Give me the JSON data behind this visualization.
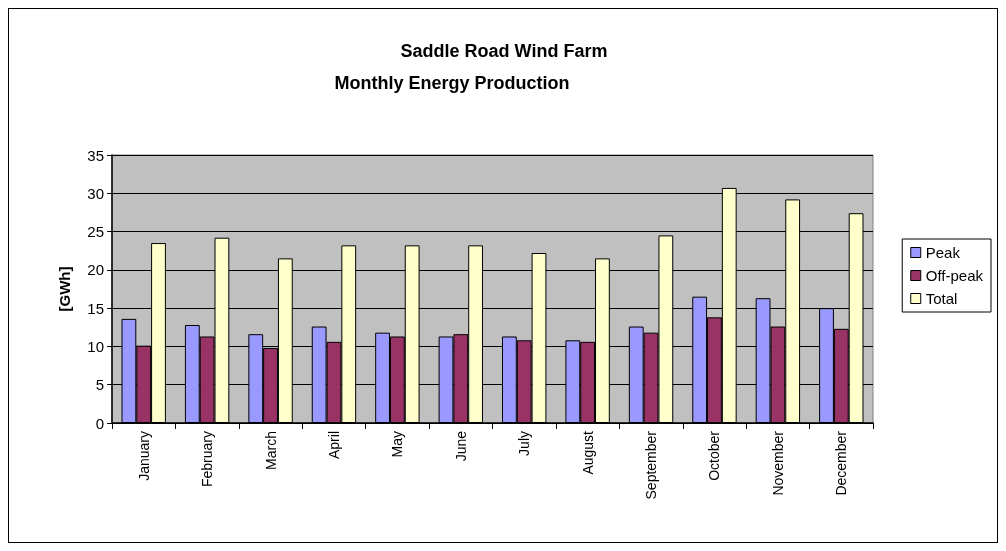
{
  "chart_data": {
    "type": "bar",
    "title": "Saddle Road Wind Farm",
    "subtitle": "Monthly Energy Production",
    "ylabel": "[GWh]",
    "categories": [
      "January",
      "February",
      "March",
      "April",
      "May",
      "June",
      "July",
      "August",
      "September",
      "October",
      "November",
      "December"
    ],
    "series": [
      {
        "name": "Peak",
        "color": "#9999ff",
        "values": [
          13.6,
          12.8,
          11.6,
          12.6,
          11.8,
          11.3,
          11.3,
          10.8,
          12.6,
          16.5,
          16.3,
          15.0
        ]
      },
      {
        "name": "Off-peak",
        "color": "#993366",
        "values": [
          10.1,
          11.3,
          9.8,
          10.6,
          11.3,
          11.6,
          10.8,
          10.6,
          11.8,
          13.8,
          12.6,
          12.3
        ]
      },
      {
        "name": "Total",
        "color": "#ffffcc",
        "values": [
          23.5,
          24.2,
          21.5,
          23.2,
          23.2,
          23.2,
          22.2,
          21.5,
          24.5,
          30.7,
          29.2,
          27.4
        ]
      }
    ],
    "ylim": [
      0,
      35
    ],
    "yticks": [
      0,
      5,
      10,
      15,
      20,
      25,
      30,
      35
    ],
    "grid": "y",
    "legend": "right"
  }
}
